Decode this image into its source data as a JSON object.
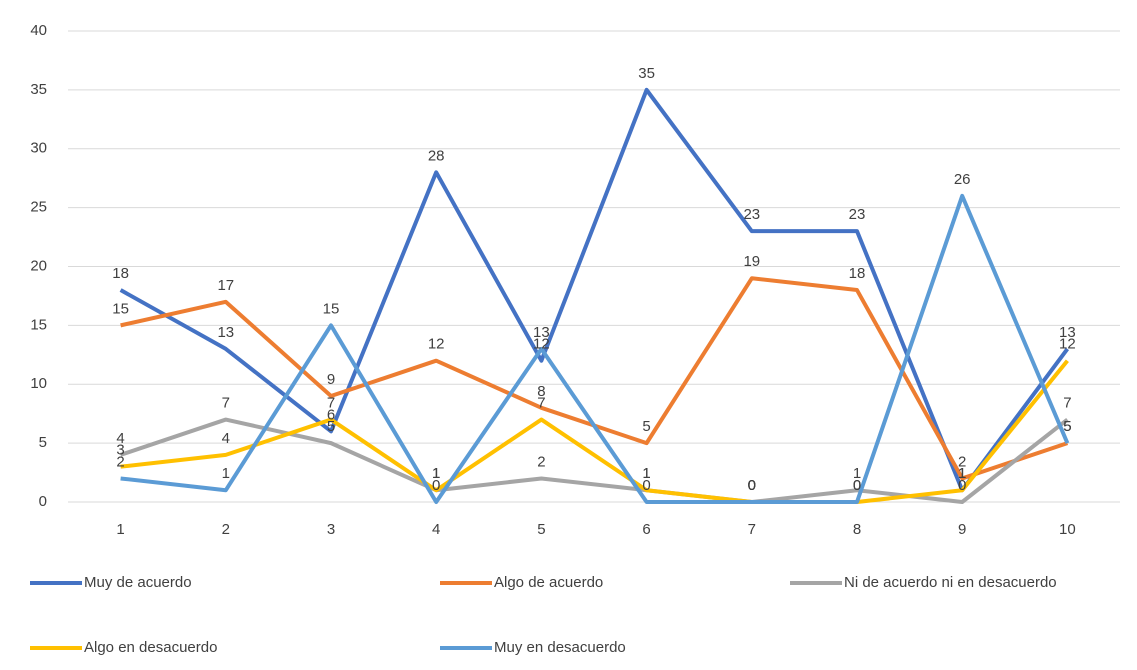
{
  "chart_data": {
    "type": "line",
    "categories": [
      "1",
      "2",
      "3",
      "4",
      "5",
      "6",
      "7",
      "8",
      "9",
      "10"
    ],
    "series": [
      {
        "name": "Muy de acuerdo",
        "color": "#4472c4",
        "values": [
          18,
          13,
          6,
          28,
          12,
          35,
          23,
          23,
          1,
          13
        ]
      },
      {
        "name": "Algo de acuerdo",
        "color": "#ed7d31",
        "values": [
          15,
          17,
          9,
          12,
          8,
          5,
          19,
          18,
          2,
          5
        ]
      },
      {
        "name": "Ni de acuerdo ni en desacuerdo",
        "color": "#a5a5a5",
        "values": [
          4,
          7,
          5,
          1,
          2,
          1,
          0,
          1,
          0,
          7
        ]
      },
      {
        "name": "Algo en desacuerdo",
        "color": "#ffc000",
        "values": [
          3,
          4,
          7,
          1,
          7,
          1,
          0,
          0,
          1,
          12
        ]
      },
      {
        "name": "Muy en desacuerdo",
        "color": "#5b9bd5",
        "values": [
          2,
          1,
          15,
          0,
          13,
          0,
          0,
          0,
          26,
          5
        ]
      }
    ],
    "ylim": [
      0,
      40
    ],
    "yticks": [
      0,
      5,
      10,
      15,
      20,
      25,
      30,
      35,
      40
    ],
    "grid": true,
    "legend": "bottom",
    "data_labels": true
  }
}
